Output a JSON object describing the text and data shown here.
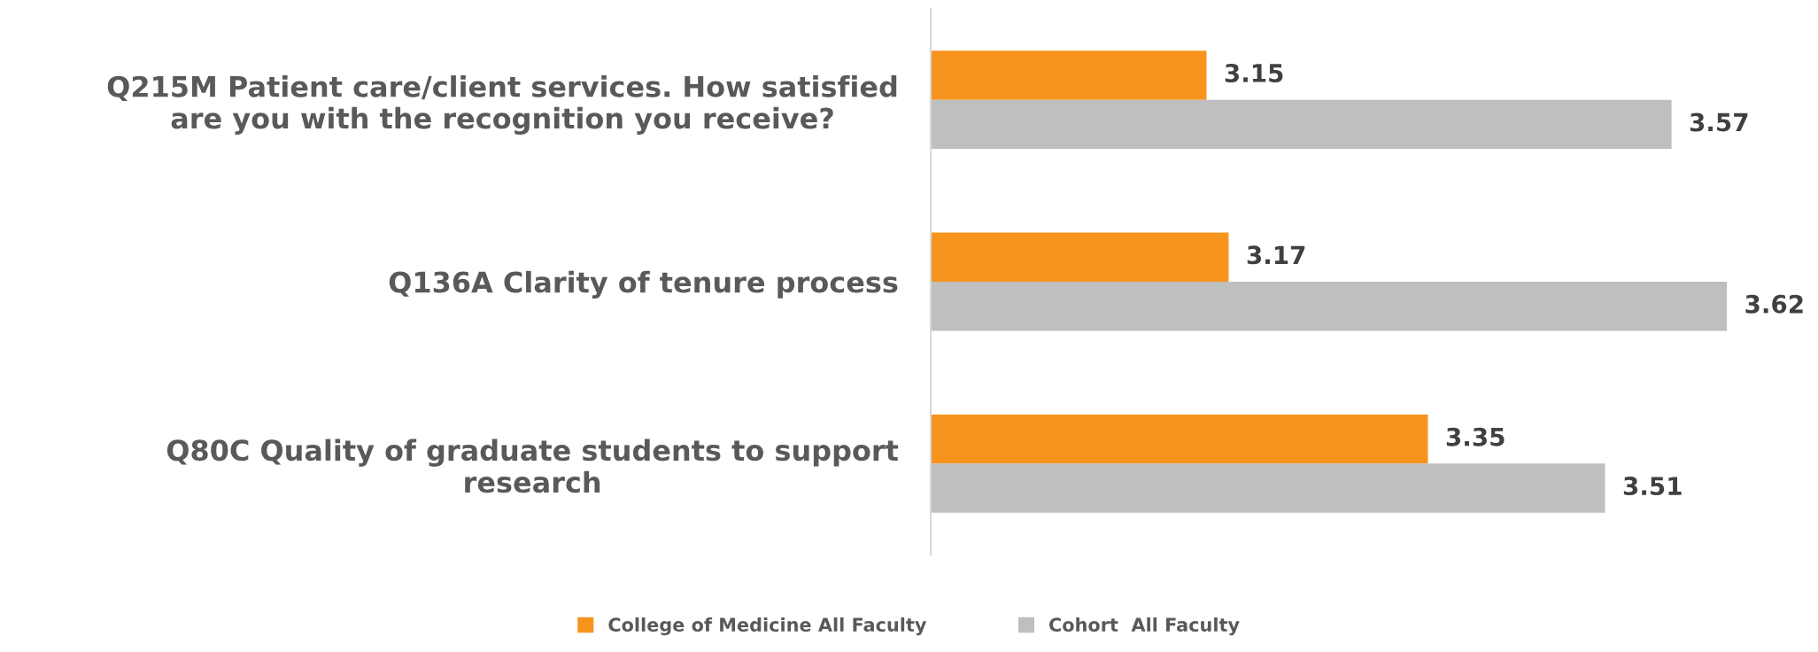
{
  "chart_data": {
    "type": "bar",
    "orientation": "horizontal",
    "categories": [
      "Q215M Patient care/client services. How satisfied\nare you with the recognition you receive?",
      "Q136A Clarity of tenure process",
      "Q80C Quality of graduate students to support\nresearch"
    ],
    "series": [
      {
        "name": "College of Medicine All Faculty",
        "color": "#f7941d",
        "values": [
          3.15,
          3.17,
          3.35
        ]
      },
      {
        "name": "Cohort  All Faculty",
        "color": "#bfbfbf",
        "values": [
          3.57,
          3.62,
          3.51
        ]
      }
    ],
    "data_labels": true,
    "grid": false,
    "legend": "bottom"
  }
}
